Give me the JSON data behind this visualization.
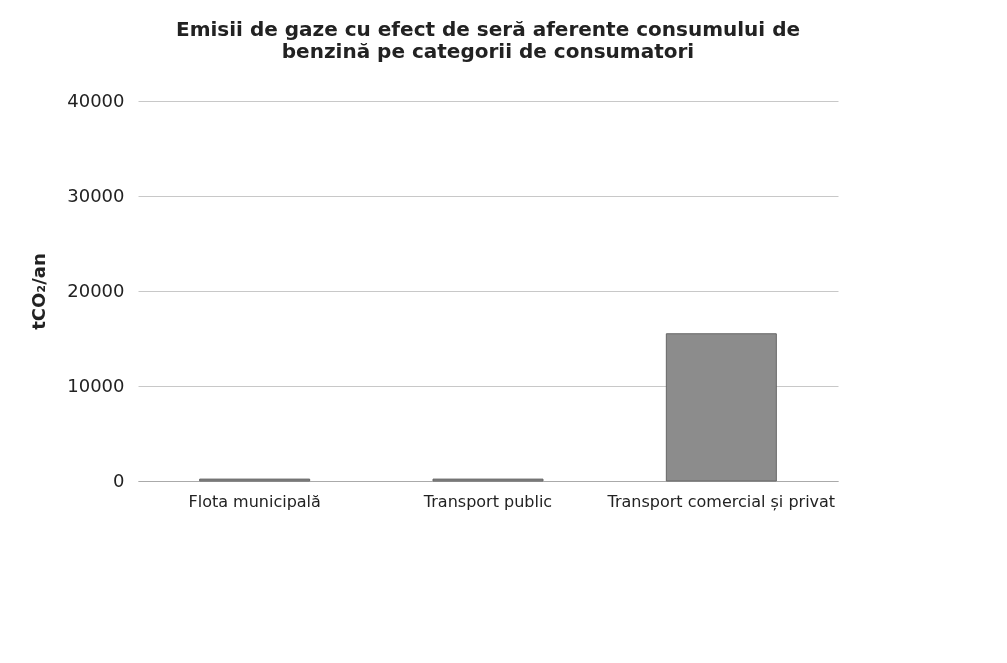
{
  "chart_data": {
    "type": "bar",
    "title": "Emisii de gaze cu efect de seră aferente consumului de benzină pe categorii de consumatori",
    "ylabel": "tCO₂/an",
    "categories": [
      "Flota municipală",
      "Transport public",
      "Transport comercial și privat"
    ],
    "series": [
      {
        "color": "#8c8c8c",
        "values": [
          200,
          200,
          15500
        ]
      }
    ],
    "ylim": [
      0,
      40000
    ],
    "yticks": [
      0,
      10000,
      20000,
      30000,
      40000
    ],
    "grid": "y",
    "legend": false
  }
}
